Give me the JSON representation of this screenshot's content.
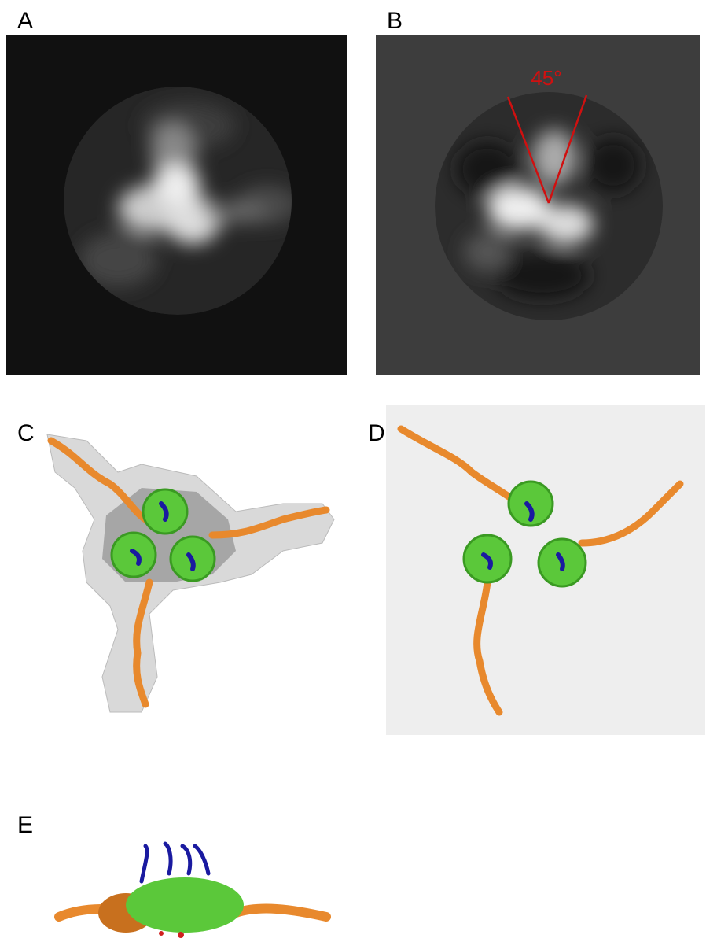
{
  "panels": [
    {
      "label": "A"
    },
    {
      "label": "B",
      "annotation": "45°"
    },
    {
      "label": "C"
    },
    {
      "label": "D"
    },
    {
      "label": "E"
    }
  ]
}
